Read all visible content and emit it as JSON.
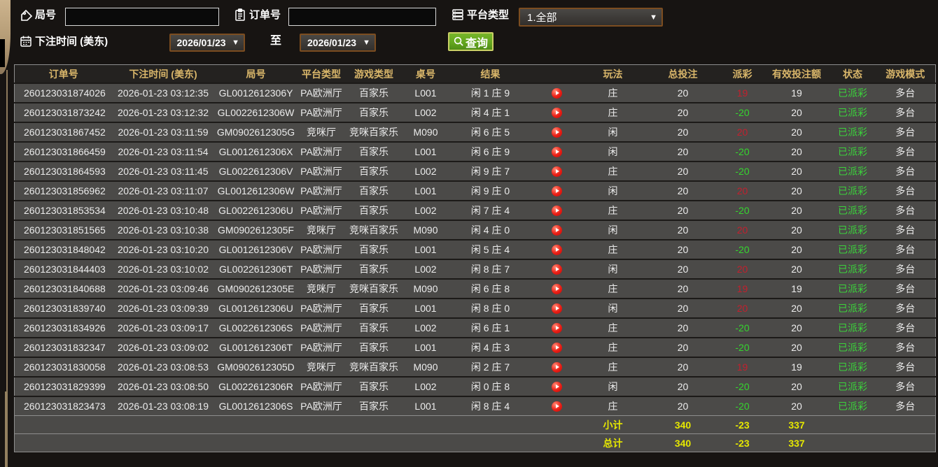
{
  "colors": {
    "header_gold": "#d9b66a",
    "win_red": "#c2202e",
    "loss_green": "#35d52e",
    "status_green": "#3bd33b",
    "total_yellow": "#e6e800",
    "button_green": "#64a71f",
    "border_brown": "#7c4d20"
  },
  "filters": {
    "round_label": "局号",
    "round_value": "",
    "order_label": "订单号",
    "order_value": "",
    "platform_label": "平台类型",
    "platform_value": "1.全部",
    "bet_time_label": "下注时间 (美东)",
    "date_from": "2026/01/23",
    "to_label": "至",
    "date_to": "2026/01/23",
    "query_label": "查询"
  },
  "table": {
    "headers": [
      "订单号",
      "下注时间 (美东)",
      "局号",
      "平台类型",
      "游戏类型",
      "桌号",
      "结果",
      "",
      "玩法",
      "总投注",
      "派彩",
      "有效投注额",
      "状态",
      "游戏模式"
    ],
    "rows": [
      {
        "order": "260123031874026",
        "time": "2026-01-23 03:12:35",
        "round": "GL0012612306Y",
        "platform": "PA欧洲厅",
        "game": "百家乐",
        "table": "L001",
        "result": "闲 1 庄 9",
        "bet_type": "庄",
        "total_bet": "20",
        "payout": "19",
        "payout_result": "win",
        "valid_bet": "19",
        "status": "已派彩",
        "mode": "多台"
      },
      {
        "order": "260123031873242",
        "time": "2026-01-23 03:12:32",
        "round": "GL0022612306W",
        "platform": "PA欧洲厅",
        "game": "百家乐",
        "table": "L002",
        "result": "闲 4 庄 1",
        "bet_type": "庄",
        "total_bet": "20",
        "payout": "-20",
        "payout_result": "loss",
        "valid_bet": "20",
        "status": "已派彩",
        "mode": "多台"
      },
      {
        "order": "260123031867452",
        "time": "2026-01-23 03:11:59",
        "round": "GM0902612305G",
        "platform": "竞咪厅",
        "game": "竞咪百家乐",
        "table": "M090",
        "result": "闲 6 庄 5",
        "bet_type": "闲",
        "total_bet": "20",
        "payout": "20",
        "payout_result": "win",
        "valid_bet": "20",
        "status": "已派彩",
        "mode": "多台"
      },
      {
        "order": "260123031866459",
        "time": "2026-01-23 03:11:54",
        "round": "GL0012612306X",
        "platform": "PA欧洲厅",
        "game": "百家乐",
        "table": "L001",
        "result": "闲 6 庄 9",
        "bet_type": "闲",
        "total_bet": "20",
        "payout": "-20",
        "payout_result": "loss",
        "valid_bet": "20",
        "status": "已派彩",
        "mode": "多台"
      },
      {
        "order": "260123031864593",
        "time": "2026-01-23 03:11:45",
        "round": "GL0022612306V",
        "platform": "PA欧洲厅",
        "game": "百家乐",
        "table": "L002",
        "result": "闲 9 庄 7",
        "bet_type": "庄",
        "total_bet": "20",
        "payout": "-20",
        "payout_result": "loss",
        "valid_bet": "20",
        "status": "已派彩",
        "mode": "多台"
      },
      {
        "order": "260123031856962",
        "time": "2026-01-23 03:11:07",
        "round": "GL0012612306W",
        "platform": "PA欧洲厅",
        "game": "百家乐",
        "table": "L001",
        "result": "闲 9 庄 0",
        "bet_type": "闲",
        "total_bet": "20",
        "payout": "20",
        "payout_result": "win",
        "valid_bet": "20",
        "status": "已派彩",
        "mode": "多台"
      },
      {
        "order": "260123031853534",
        "time": "2026-01-23 03:10:48",
        "round": "GL0022612306U",
        "platform": "PA欧洲厅",
        "game": "百家乐",
        "table": "L002",
        "result": "闲 7 庄 4",
        "bet_type": "庄",
        "total_bet": "20",
        "payout": "-20",
        "payout_result": "loss",
        "valid_bet": "20",
        "status": "已派彩",
        "mode": "多台"
      },
      {
        "order": "260123031851565",
        "time": "2026-01-23 03:10:38",
        "round": "GM0902612305F",
        "platform": "竞咪厅",
        "game": "竞咪百家乐",
        "table": "M090",
        "result": "闲 4 庄 0",
        "bet_type": "闲",
        "total_bet": "20",
        "payout": "20",
        "payout_result": "win",
        "valid_bet": "20",
        "status": "已派彩",
        "mode": "多台"
      },
      {
        "order": "260123031848042",
        "time": "2026-01-23 03:10:20",
        "round": "GL0012612306V",
        "platform": "PA欧洲厅",
        "game": "百家乐",
        "table": "L001",
        "result": "闲 5 庄 4",
        "bet_type": "庄",
        "total_bet": "20",
        "payout": "-20",
        "payout_result": "loss",
        "valid_bet": "20",
        "status": "已派彩",
        "mode": "多台"
      },
      {
        "order": "260123031844403",
        "time": "2026-01-23 03:10:02",
        "round": "GL0022612306T",
        "platform": "PA欧洲厅",
        "game": "百家乐",
        "table": "L002",
        "result": "闲 8 庄 7",
        "bet_type": "闲",
        "total_bet": "20",
        "payout": "20",
        "payout_result": "win",
        "valid_bet": "20",
        "status": "已派彩",
        "mode": "多台"
      },
      {
        "order": "260123031840688",
        "time": "2026-01-23 03:09:46",
        "round": "GM0902612305E",
        "platform": "竞咪厅",
        "game": "竞咪百家乐",
        "table": "M090",
        "result": "闲 6 庄 8",
        "bet_type": "庄",
        "total_bet": "20",
        "payout": "19",
        "payout_result": "win",
        "valid_bet": "19",
        "status": "已派彩",
        "mode": "多台"
      },
      {
        "order": "260123031839740",
        "time": "2026-01-23 03:09:39",
        "round": "GL0012612306U",
        "platform": "PA欧洲厅",
        "game": "百家乐",
        "table": "L001",
        "result": "闲 8 庄 0",
        "bet_type": "闲",
        "total_bet": "20",
        "payout": "20",
        "payout_result": "win",
        "valid_bet": "20",
        "status": "已派彩",
        "mode": "多台"
      },
      {
        "order": "260123031834926",
        "time": "2026-01-23 03:09:17",
        "round": "GL0022612306S",
        "platform": "PA欧洲厅",
        "game": "百家乐",
        "table": "L002",
        "result": "闲 6 庄 1",
        "bet_type": "庄",
        "total_bet": "20",
        "payout": "-20",
        "payout_result": "loss",
        "valid_bet": "20",
        "status": "已派彩",
        "mode": "多台"
      },
      {
        "order": "260123031832347",
        "time": "2026-01-23 03:09:02",
        "round": "GL0012612306T",
        "platform": "PA欧洲厅",
        "game": "百家乐",
        "table": "L001",
        "result": "闲 4 庄 3",
        "bet_type": "庄",
        "total_bet": "20",
        "payout": "-20",
        "payout_result": "loss",
        "valid_bet": "20",
        "status": "已派彩",
        "mode": "多台"
      },
      {
        "order": "260123031830058",
        "time": "2026-01-23 03:08:53",
        "round": "GM0902612305D",
        "platform": "竞咪厅",
        "game": "竞咪百家乐",
        "table": "M090",
        "result": "闲 2 庄 7",
        "bet_type": "庄",
        "total_bet": "20",
        "payout": "19",
        "payout_result": "win",
        "valid_bet": "19",
        "status": "已派彩",
        "mode": "多台"
      },
      {
        "order": "260123031829399",
        "time": "2026-01-23 03:08:50",
        "round": "GL0022612306R",
        "platform": "PA欧洲厅",
        "game": "百家乐",
        "table": "L002",
        "result": "闲 0 庄 8",
        "bet_type": "闲",
        "total_bet": "20",
        "payout": "-20",
        "payout_result": "loss",
        "valid_bet": "20",
        "status": "已派彩",
        "mode": "多台"
      },
      {
        "order": "260123031823473",
        "time": "2026-01-23 03:08:19",
        "round": "GL0012612306S",
        "platform": "PA欧洲厅",
        "game": "百家乐",
        "table": "L001",
        "result": "闲 8 庄 4",
        "bet_type": "庄",
        "total_bet": "20",
        "payout": "-20",
        "payout_result": "loss",
        "valid_bet": "20",
        "status": "已派彩",
        "mode": "多台"
      }
    ],
    "subtotal": {
      "label": "小计",
      "total_bet": "340",
      "payout": "-23",
      "valid_bet": "337"
    },
    "total": {
      "label": "总计",
      "total_bet": "340",
      "payout": "-23",
      "valid_bet": "337"
    }
  }
}
